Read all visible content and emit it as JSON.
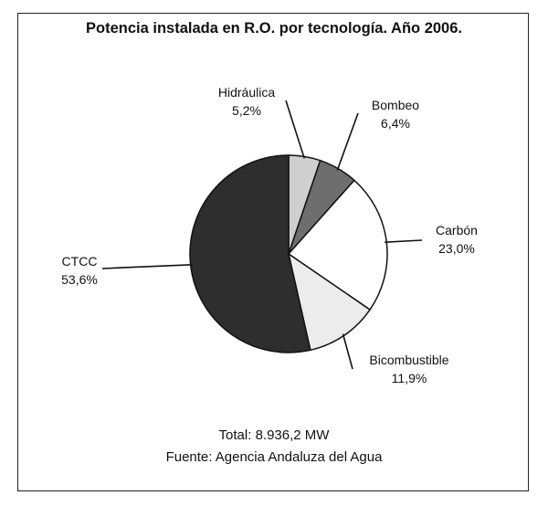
{
  "chart_data": {
    "type": "pie",
    "title": "Potencia instalada en R.O. por tecnología. Año 2006.",
    "slices": [
      {
        "label": "Hidráulica",
        "value": 5.2,
        "value_label": "5,2%",
        "color": "#cfcfcf"
      },
      {
        "label": "Bombeo",
        "value": 6.4,
        "value_label": "6,4%",
        "color": "#6e6e6e"
      },
      {
        "label": "Carbón",
        "value": 23.0,
        "value_label": "23,0%",
        "color": "#ffffff"
      },
      {
        "label": "Bicombustible",
        "value": 11.9,
        "value_label": "11,9%",
        "color": "#ececec"
      },
      {
        "label": "CTCC",
        "value": 53.6,
        "value_label": "53,6%",
        "color": "#2e2e2e"
      }
    ],
    "footer": {
      "total": "Total: 8.936,2 MW",
      "source": "Fuente: Agencia Andaluza del Agua"
    }
  }
}
